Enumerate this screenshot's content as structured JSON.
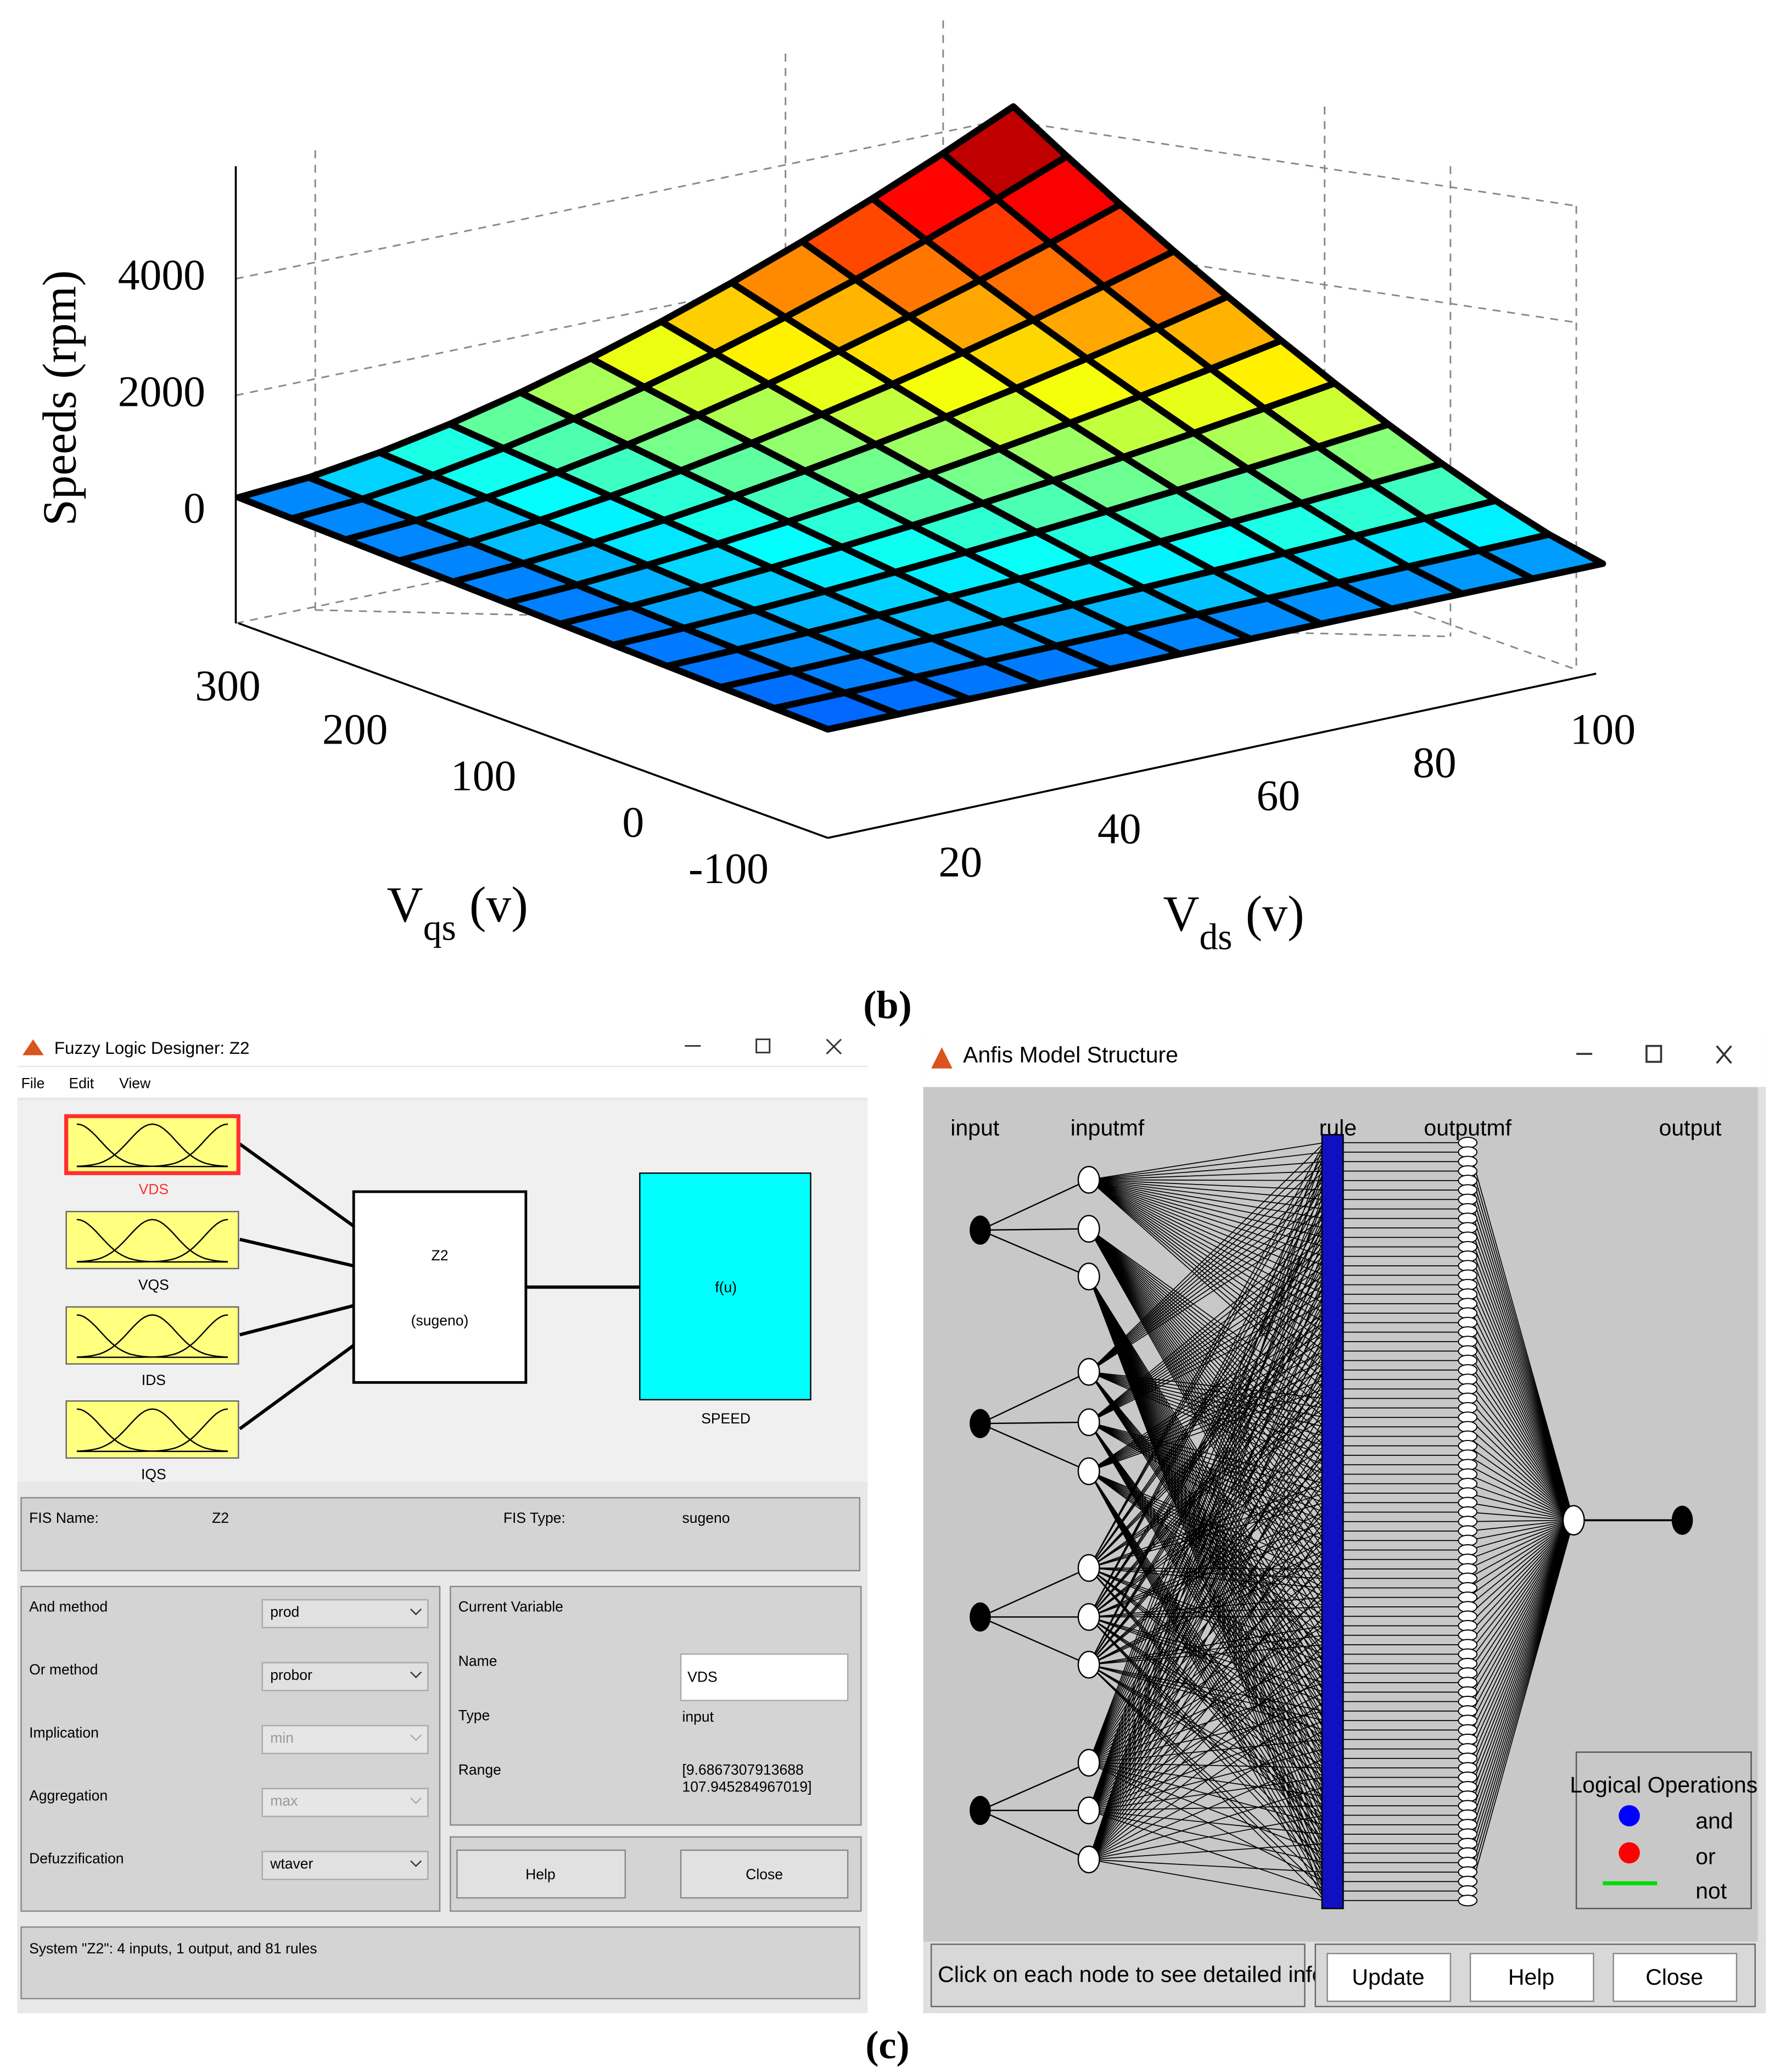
{
  "plot": {
    "z_label": "Speeds (rpm)",
    "z_ticks": [
      4000,
      2000,
      0
    ],
    "vqs_label": {
      "main": "V",
      "sub": "qs",
      "unit": "(v)"
    },
    "vqs_ticks": [
      300,
      200,
      100,
      0,
      -100
    ],
    "vds_label": {
      "main": "V",
      "sub": "ds",
      "unit": "(v)"
    },
    "vds_ticks": [
      20,
      40,
      60,
      80,
      100
    ],
    "caption": "(b)"
  },
  "caption": "(c)",
  "fuzzy": {
    "title": "Fuzzy Logic Designer: Z2",
    "menu": [
      "File",
      "Edit",
      "View"
    ],
    "inputs": [
      "VDS",
      "VQS",
      "IDS",
      "IQS"
    ],
    "system": {
      "name": "Z2",
      "kind": "(sugeno)"
    },
    "output": {
      "func": "f(u)",
      "name": "SPEED"
    },
    "fis_name_label": "FIS Name:",
    "fis_name": "Z2",
    "fis_type_label": "FIS Type:",
    "fis_type": "sugeno",
    "methods": [
      {
        "label": "And method",
        "value": "prod"
      },
      {
        "label": "Or method",
        "value": "probor"
      },
      {
        "label": "Implication",
        "value": "min"
      },
      {
        "label": "Aggregation",
        "value": "max"
      },
      {
        "label": "Defuzzification",
        "value": "wtaver"
      }
    ],
    "current": {
      "title": "Current Variable",
      "name_label": "Name",
      "name": "VDS",
      "type_label": "Type",
      "type": "input",
      "range_label": "Range",
      "range": [
        "[9.6867307913688",
        "107.945284967019]"
      ]
    },
    "buttons": [
      "Help",
      "Close"
    ],
    "status": "System \"Z2\": 4 inputs, 1 output, and 81 rules"
  },
  "anfis": {
    "title": "Anfis Model Structure",
    "columns": [
      "input",
      "inputmf",
      "rule",
      "outputmf",
      "output"
    ],
    "legend": {
      "title": "Logical Operations",
      "items": [
        "and",
        "or",
        "not"
      ]
    },
    "status": "Click on each node to see detailed information",
    "buttons": [
      "Update",
      "Help",
      "Close"
    ]
  }
}
